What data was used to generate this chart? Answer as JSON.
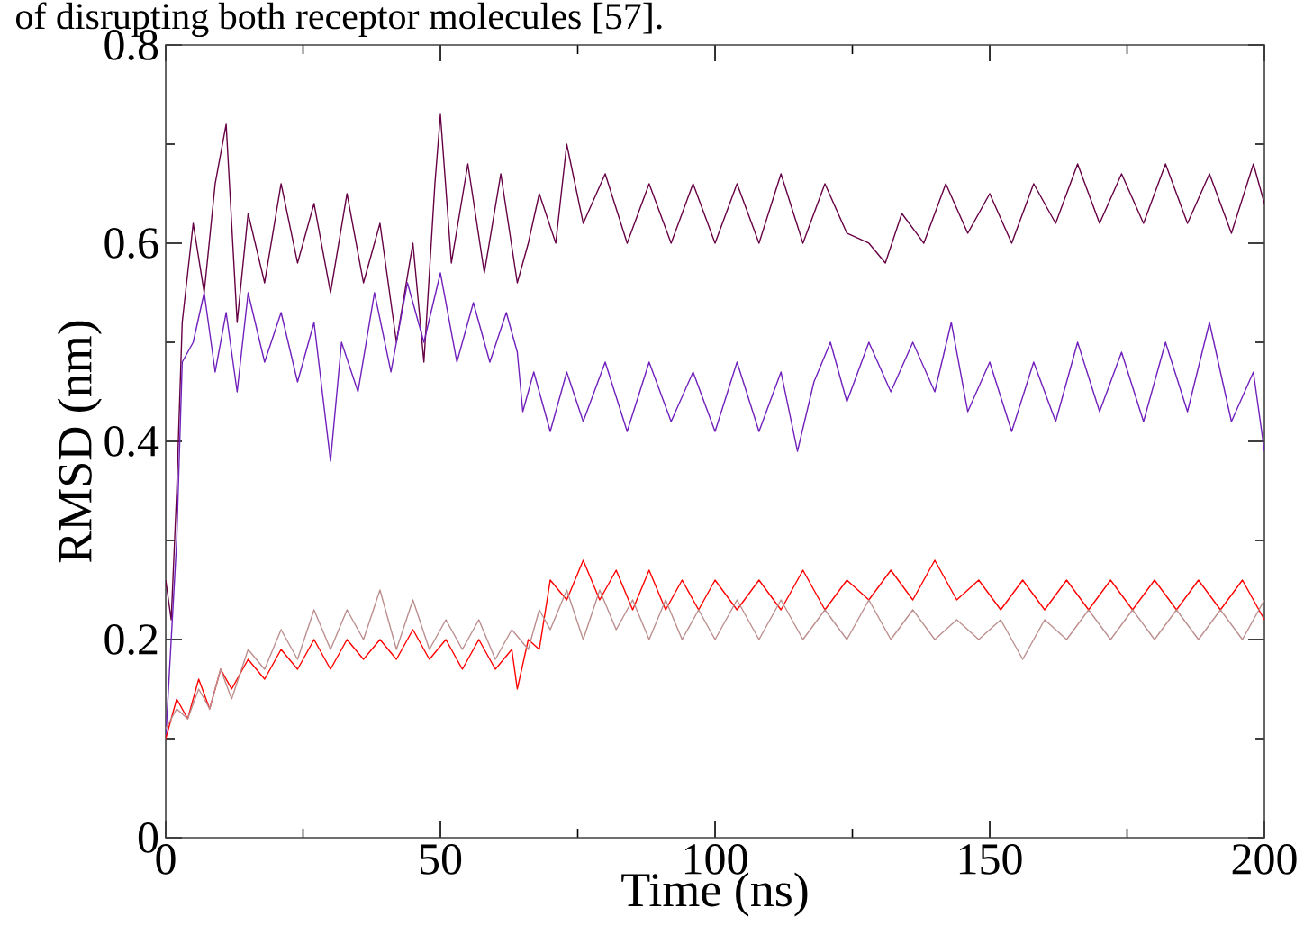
{
  "chart_data": {
    "type": "line",
    "xlabel": "Time (ns)",
    "ylabel": "RMSD (nm)",
    "annotations": [
      "of disrupting both receptor molecules [57]."
    ],
    "xlim": [
      0,
      200
    ],
    "ylim": [
      0,
      0.8
    ],
    "xticks": [
      0,
      50,
      100,
      150,
      200
    ],
    "yticks": [
      0,
      0.2,
      0.4,
      0.6,
      0.8
    ],
    "series": [
      {
        "color": "#660044",
        "x": [
          0,
          1,
          2,
          3,
          5,
          7,
          9,
          11,
          13,
          15,
          18,
          21,
          24,
          27,
          30,
          33,
          36,
          39,
          42,
          45,
          47,
          49,
          50,
          52,
          55,
          58,
          61,
          64,
          66,
          68,
          71,
          73,
          76,
          80,
          84,
          88,
          92,
          96,
          100,
          104,
          108,
          112,
          116,
          120,
          124,
          128,
          131,
          134,
          138,
          142,
          146,
          150,
          154,
          158,
          162,
          166,
          170,
          174,
          178,
          182,
          186,
          190,
          194,
          198,
          200
        ],
        "values": [
          0.26,
          0.22,
          0.35,
          0.52,
          0.62,
          0.55,
          0.66,
          0.72,
          0.52,
          0.63,
          0.56,
          0.66,
          0.58,
          0.64,
          0.55,
          0.65,
          0.56,
          0.62,
          0.5,
          0.6,
          0.48,
          0.66,
          0.73,
          0.58,
          0.68,
          0.57,
          0.67,
          0.56,
          0.6,
          0.65,
          0.6,
          0.7,
          0.62,
          0.67,
          0.6,
          0.66,
          0.6,
          0.66,
          0.6,
          0.66,
          0.6,
          0.67,
          0.6,
          0.66,
          0.61,
          0.6,
          0.58,
          0.63,
          0.6,
          0.66,
          0.61,
          0.65,
          0.6,
          0.66,
          0.62,
          0.68,
          0.62,
          0.67,
          0.62,
          0.68,
          0.62,
          0.67,
          0.61,
          0.68,
          0.64
        ]
      },
      {
        "color": "#7020bb",
        "x": [
          0,
          1,
          2,
          3,
          5,
          7,
          9,
          11,
          13,
          15,
          18,
          21,
          24,
          27,
          30,
          32,
          35,
          38,
          41,
          44,
          47,
          50,
          53,
          56,
          59,
          62,
          64,
          65,
          67,
          70,
          73,
          76,
          80,
          84,
          88,
          92,
          96,
          100,
          104,
          108,
          112,
          115,
          118,
          121,
          124,
          128,
          132,
          136,
          140,
          143,
          146,
          150,
          154,
          158,
          162,
          166,
          170,
          174,
          178,
          182,
          186,
          190,
          194,
          198,
          200
        ],
        "values": [
          0.1,
          0.2,
          0.3,
          0.48,
          0.5,
          0.55,
          0.47,
          0.53,
          0.45,
          0.55,
          0.48,
          0.53,
          0.46,
          0.52,
          0.38,
          0.5,
          0.45,
          0.55,
          0.47,
          0.56,
          0.5,
          0.57,
          0.48,
          0.54,
          0.48,
          0.53,
          0.49,
          0.43,
          0.47,
          0.41,
          0.47,
          0.42,
          0.48,
          0.41,
          0.48,
          0.42,
          0.47,
          0.41,
          0.48,
          0.41,
          0.47,
          0.39,
          0.46,
          0.5,
          0.44,
          0.5,
          0.45,
          0.5,
          0.45,
          0.52,
          0.43,
          0.48,
          0.41,
          0.48,
          0.42,
          0.5,
          0.43,
          0.49,
          0.42,
          0.5,
          0.43,
          0.52,
          0.42,
          0.47,
          0.39
        ]
      },
      {
        "color": "#ff0000",
        "x": [
          0,
          2,
          4,
          6,
          8,
          10,
          12,
          15,
          18,
          21,
          24,
          27,
          30,
          33,
          36,
          39,
          42,
          45,
          48,
          51,
          54,
          57,
          60,
          63,
          64,
          66,
          68,
          70,
          73,
          76,
          79,
          82,
          85,
          88,
          91,
          94,
          97,
          100,
          104,
          108,
          112,
          116,
          120,
          124,
          128,
          132,
          136,
          140,
          144,
          148,
          152,
          156,
          160,
          164,
          168,
          172,
          176,
          180,
          184,
          188,
          192,
          196,
          200
        ],
        "values": [
          0.1,
          0.14,
          0.12,
          0.16,
          0.13,
          0.17,
          0.15,
          0.18,
          0.16,
          0.19,
          0.17,
          0.2,
          0.17,
          0.2,
          0.18,
          0.2,
          0.18,
          0.21,
          0.18,
          0.2,
          0.17,
          0.2,
          0.17,
          0.19,
          0.15,
          0.2,
          0.19,
          0.26,
          0.24,
          0.28,
          0.24,
          0.27,
          0.23,
          0.27,
          0.23,
          0.26,
          0.23,
          0.26,
          0.23,
          0.26,
          0.23,
          0.27,
          0.23,
          0.26,
          0.24,
          0.27,
          0.24,
          0.28,
          0.24,
          0.26,
          0.23,
          0.26,
          0.23,
          0.26,
          0.23,
          0.26,
          0.23,
          0.26,
          0.23,
          0.26,
          0.23,
          0.26,
          0.22
        ]
      },
      {
        "color": "#bc8f8f",
        "x": [
          0,
          2,
          4,
          6,
          8,
          10,
          12,
          15,
          18,
          21,
          24,
          27,
          30,
          33,
          36,
          39,
          42,
          45,
          48,
          51,
          54,
          57,
          60,
          63,
          66,
          68,
          70,
          73,
          76,
          79,
          82,
          85,
          88,
          91,
          94,
          97,
          100,
          104,
          108,
          112,
          116,
          120,
          124,
          128,
          132,
          136,
          140,
          144,
          148,
          152,
          156,
          160,
          164,
          168,
          172,
          176,
          180,
          184,
          188,
          192,
          196,
          200
        ],
        "values": [
          0.11,
          0.13,
          0.12,
          0.15,
          0.13,
          0.17,
          0.14,
          0.19,
          0.17,
          0.21,
          0.18,
          0.23,
          0.19,
          0.23,
          0.2,
          0.25,
          0.19,
          0.24,
          0.19,
          0.22,
          0.19,
          0.22,
          0.18,
          0.21,
          0.19,
          0.23,
          0.21,
          0.25,
          0.2,
          0.25,
          0.21,
          0.24,
          0.2,
          0.24,
          0.2,
          0.23,
          0.2,
          0.24,
          0.2,
          0.24,
          0.2,
          0.23,
          0.2,
          0.24,
          0.2,
          0.23,
          0.2,
          0.22,
          0.2,
          0.22,
          0.18,
          0.22,
          0.2,
          0.23,
          0.2,
          0.23,
          0.2,
          0.23,
          0.2,
          0.23,
          0.2,
          0.24
        ]
      }
    ]
  }
}
